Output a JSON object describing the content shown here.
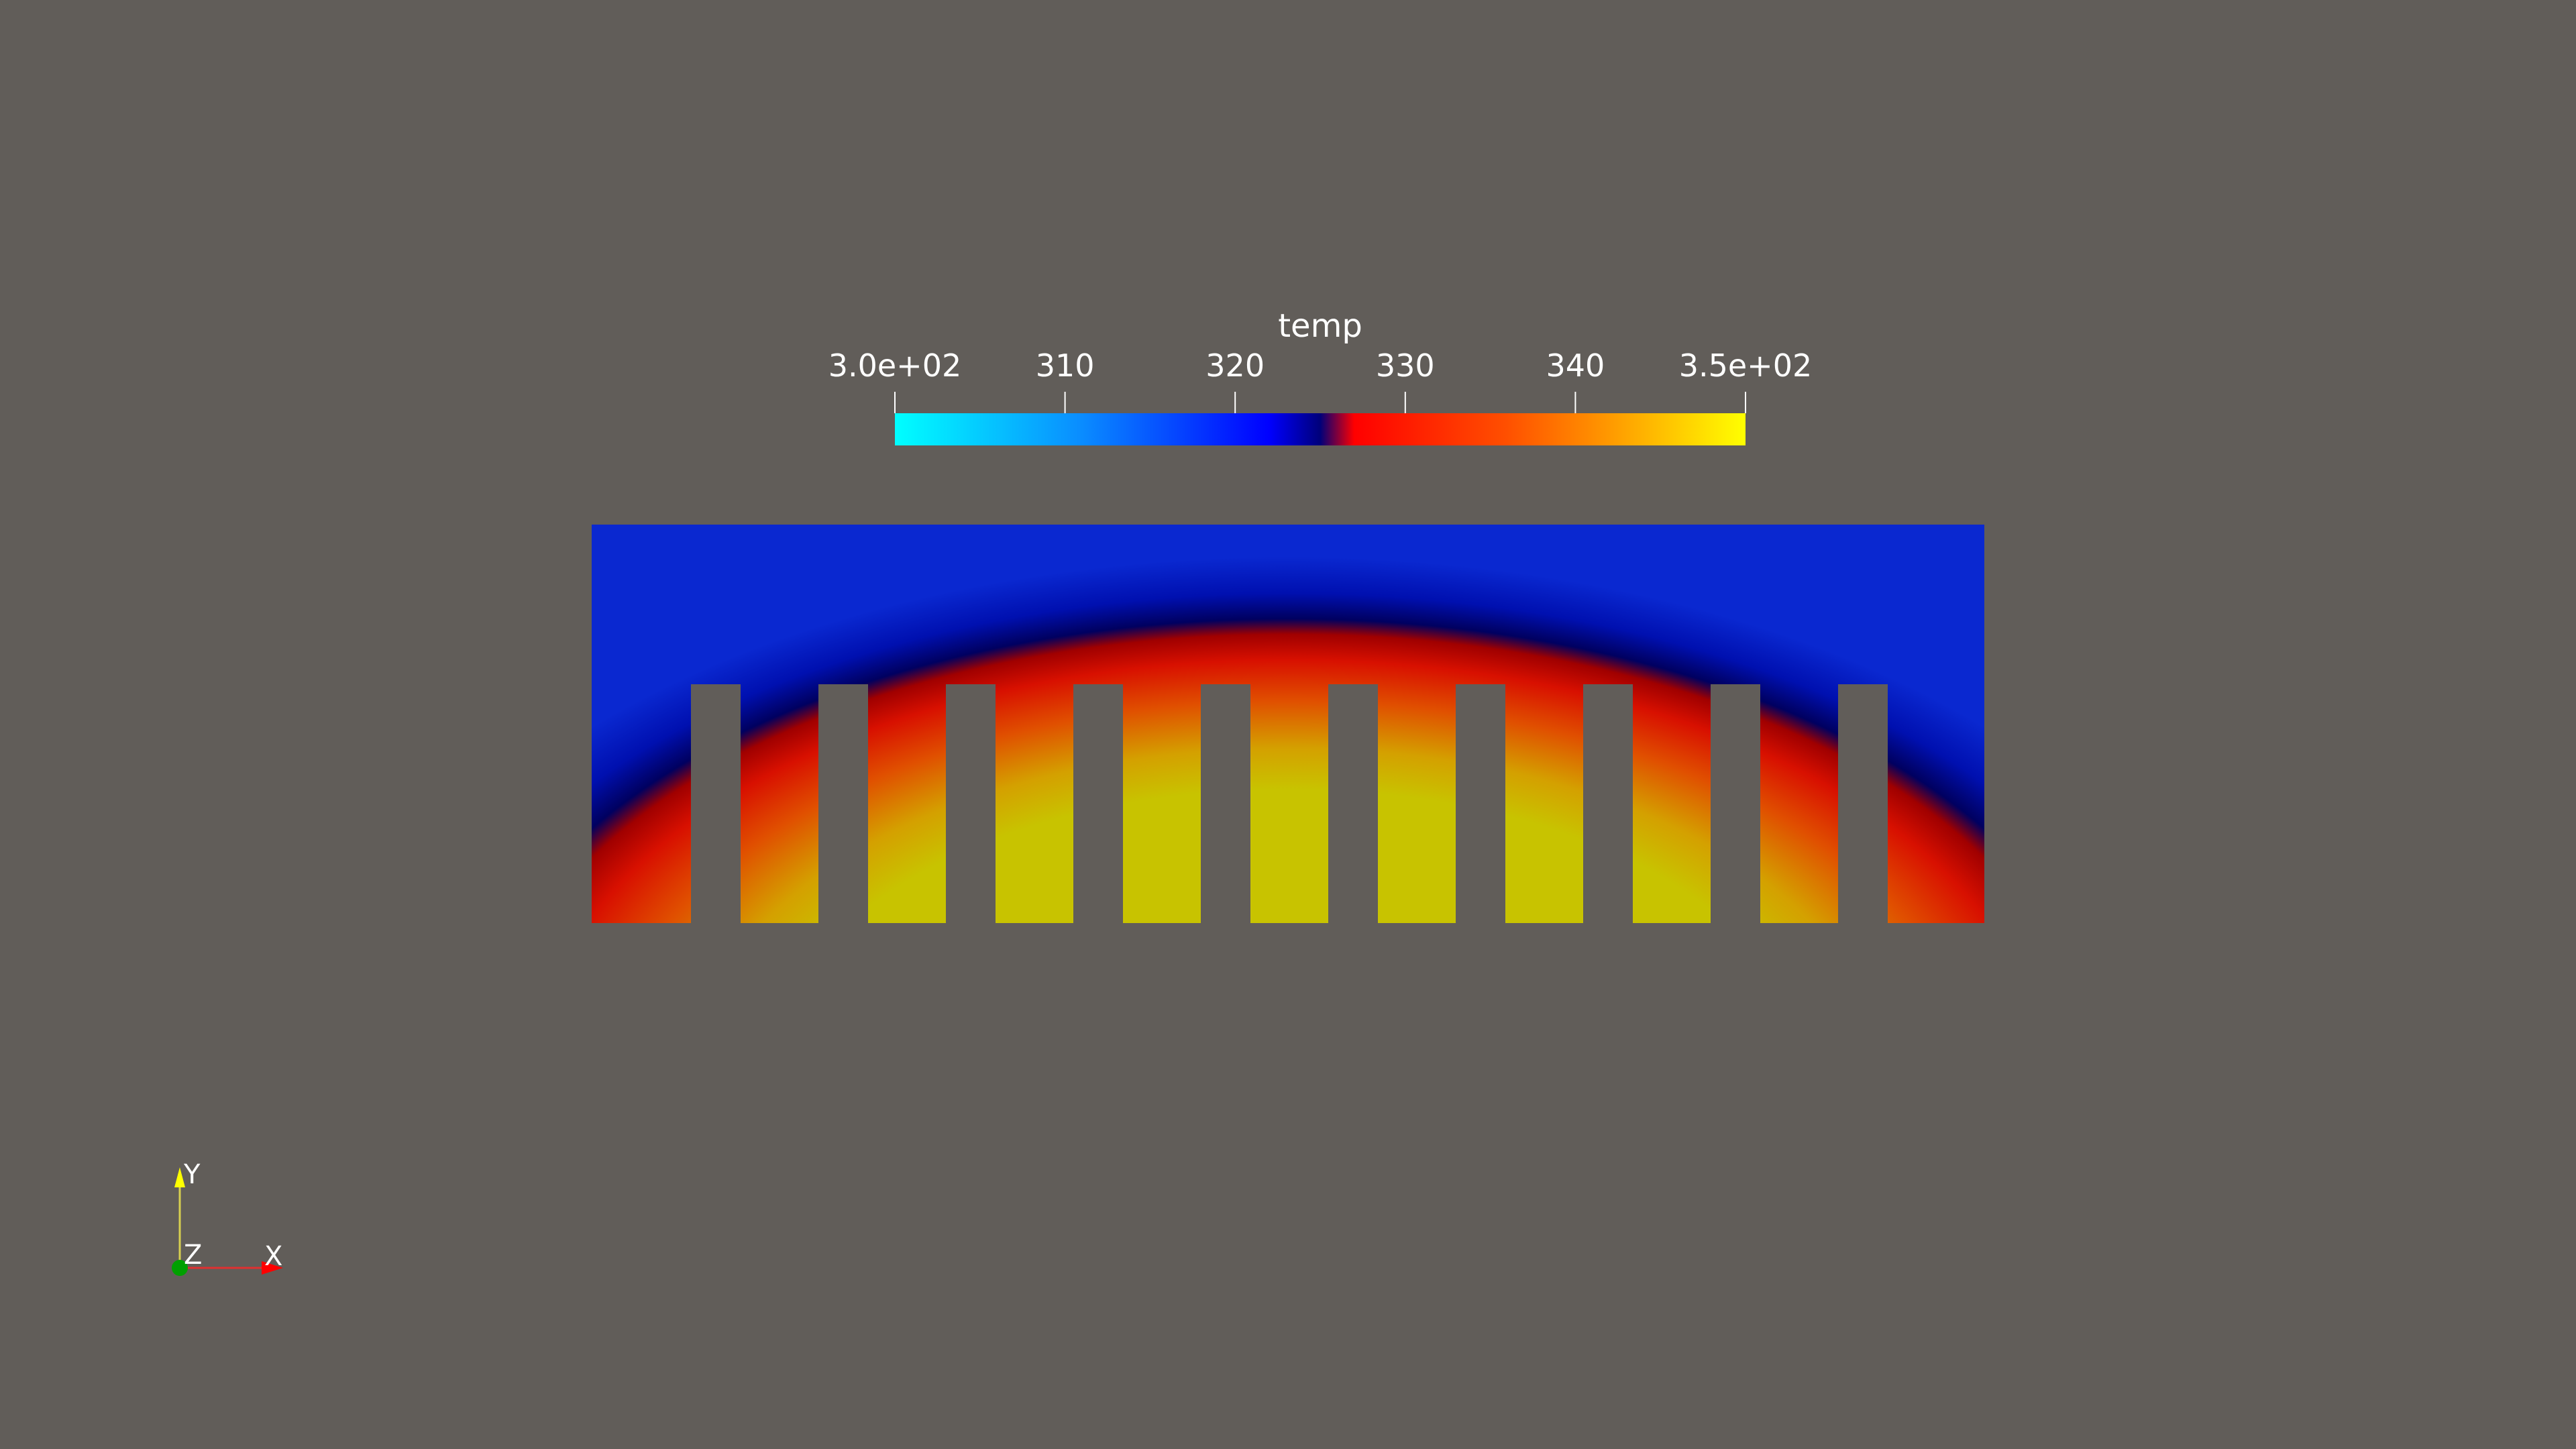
{
  "scalar_bar": {
    "title": "temp",
    "range": [
      300,
      350
    ],
    "ticks": [
      {
        "value": 300,
        "label": "3.0e+02"
      },
      {
        "value": 310,
        "label": "310"
      },
      {
        "value": 320,
        "label": "320"
      },
      {
        "value": 330,
        "label": "330"
      },
      {
        "value": 340,
        "label": "340"
      },
      {
        "value": 350,
        "label": "3.5e+02"
      }
    ],
    "colormap": [
      {
        "value": 300,
        "color": "#00ffff"
      },
      {
        "value": 311,
        "color": "#0a8cff"
      },
      {
        "value": 322,
        "color": "#0000ff"
      },
      {
        "value": 325,
        "color": "#00007a"
      },
      {
        "value": 327,
        "color": "#ff0000"
      },
      {
        "value": 336,
        "color": "#ff5000"
      },
      {
        "value": 342,
        "color": "#ff9900"
      },
      {
        "value": 350,
        "color": "#ffff00"
      }
    ]
  },
  "model": {
    "fin_count": 10,
    "fill_color": "#c8c300"
  },
  "orientation_axes": {
    "y_label": "Y",
    "z_label": "Z",
    "x_label": "X",
    "y_color": "#ffff00",
    "x_color": "#ff0000",
    "z_color": "#00a000"
  },
  "background_color": "#615d59"
}
